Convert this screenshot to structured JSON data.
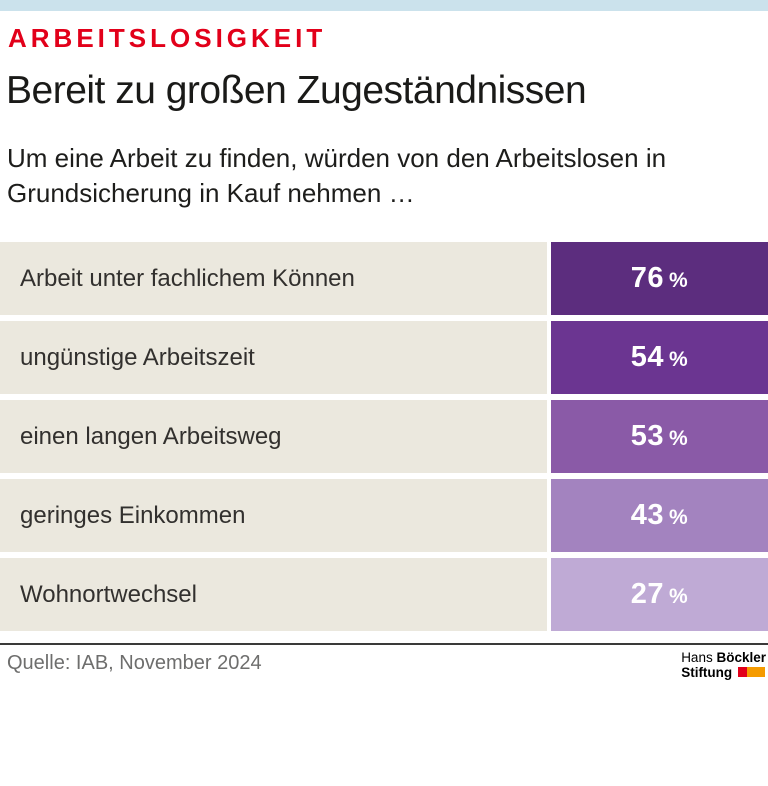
{
  "meta": {
    "accent_bar_color": "#cbe2ec"
  },
  "header": {
    "kicker": "ARBEITSLOSIGKEIT",
    "kicker_color": "#e2001a",
    "title": "Bereit zu großen Zugeständnissen",
    "subtitle_line1": "Um eine Arbeit zu finden, würden von den Arbeitslosen in",
    "subtitle_line2": "Grundsicherung in Kauf nehmen …"
  },
  "chart_data": {
    "type": "bar",
    "orientation": "horizontal",
    "title": "Bereit zu großen Zugeständnissen",
    "kicker": "ARBEITSLOSIGKEIT",
    "subtitle": "Um eine Arbeit zu finden, würden von den Arbeitslosen in Grundsicherung in Kauf nehmen …",
    "categories": [
      "Arbeit unter fachlichem Können",
      "ungünstige Arbeitszeit",
      "einen langen Arbeitsweg",
      "geringes Einkommen",
      "Wohnortwechsel"
    ],
    "values": [
      76,
      54,
      53,
      43,
      27
    ],
    "unit": "%",
    "source": "Quelle: IAB, November 2024",
    "bar_colors": [
      "#5c2d7e",
      "#6b3591",
      "#8a5aa7",
      "#a383bf",
      "#bfaad5"
    ],
    "label_background": "#ebe8de",
    "value_label_color": "#ffffff",
    "layout": "equal-width value blocks; purple shade encodes rank; values labeled inside blocks"
  },
  "bars": {
    "unit": "%",
    "rows": [
      {
        "label": "Arbeit unter fachlichem Können",
        "value": "76",
        "color": "#5c2d7e"
      },
      {
        "label": "ungünstige Arbeitszeit",
        "value": "54",
        "color": "#6b3591"
      },
      {
        "label": "einen langen Arbeitsweg",
        "value": "53",
        "color": "#8a5aa7"
      },
      {
        "label": "geringes Einkommen",
        "value": "43",
        "color": "#a383bf"
      },
      {
        "label": "Wohnortwechsel",
        "value": "27",
        "color": "#bfaad5"
      }
    ]
  },
  "footer": {
    "source": "Quelle: IAB, November 2024",
    "logo": {
      "name_regular": "Hans ",
      "name_bold": "Böckler",
      "line2": "Stiftung",
      "red": "#e2001a",
      "orange": "#f59b00"
    }
  }
}
